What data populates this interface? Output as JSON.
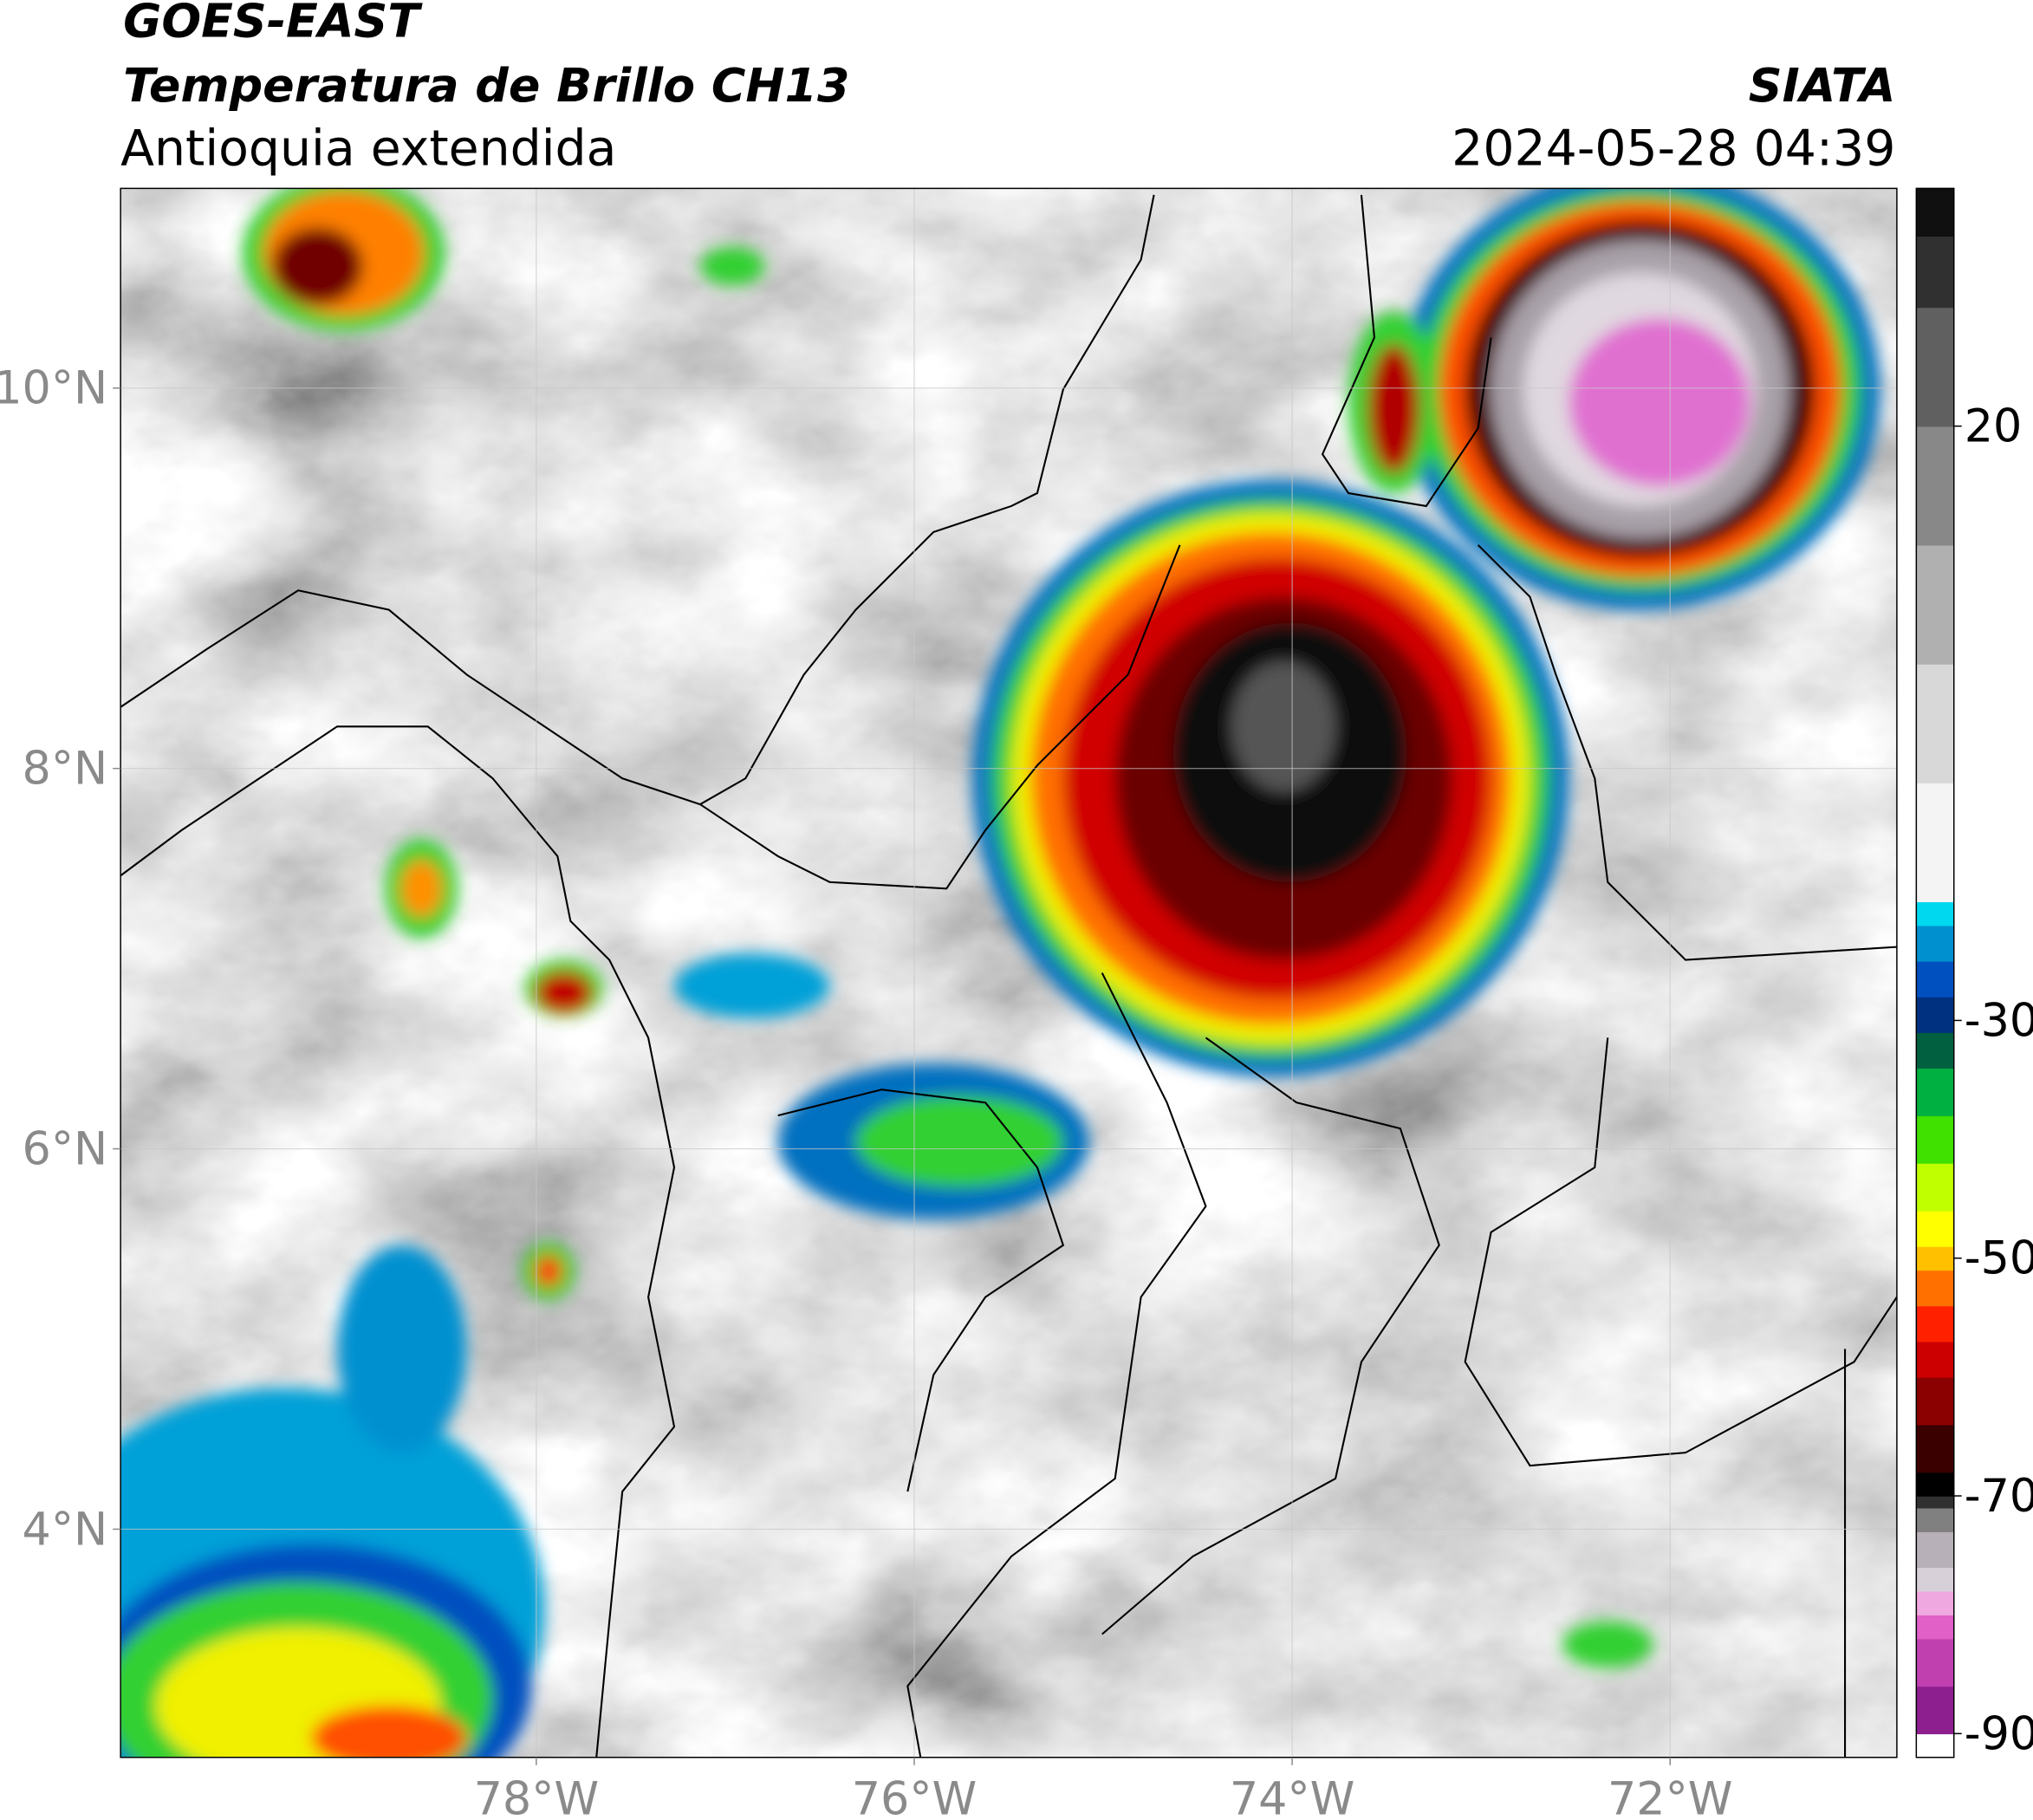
{
  "chart_data": {
    "type": "map",
    "title": "GOES-EAST",
    "subtitle": "Temperatura de Brillo CH13",
    "region": "Antioquia extendida",
    "source": "SIATA",
    "datetime": "2024-05-28 04:39",
    "xlim": [
      -80.2,
      -70.8
    ],
    "ylim": [
      2.8,
      11.05
    ],
    "xticks": [
      {
        "value": -78,
        "label": "78°W"
      },
      {
        "value": -76,
        "label": "76°W"
      },
      {
        "value": -74,
        "label": "74°W"
      },
      {
        "value": -72,
        "label": "72°W"
      }
    ],
    "yticks": [
      {
        "value": 10,
        "label": "10°N"
      },
      {
        "value": 8,
        "label": "8°N"
      },
      {
        "value": 6,
        "label": "6°N"
      },
      {
        "value": 4,
        "label": "4°N"
      }
    ],
    "grid": true,
    "colorbar": {
      "lim": [
        -92,
        40
      ],
      "ticks": [
        20,
        -30,
        -50,
        -70,
        -90
      ],
      "levels": [
        -92,
        -90,
        -86,
        -82,
        -80,
        -78,
        -76,
        -73,
        -71,
        -70,
        -68,
        -64,
        -60,
        -57,
        -54,
        -51,
        -49,
        -46,
        -42,
        -38,
        -34,
        -31,
        -28,
        -25,
        -22,
        -20,
        -10,
        0,
        10,
        20,
        30,
        36
      ],
      "colors": [
        "#ffffff",
        "#8e1f8e",
        "#c040b0",
        "#e060c8",
        "#f0a8e0",
        "#d8d0d8",
        "#b8b0b8",
        "#808080",
        "#303030",
        "#000000",
        "#3a0000",
        "#8b0000",
        "#cc0000",
        "#ff2000",
        "#ff7000",
        "#ffc000",
        "#ffff00",
        "#c0ff00",
        "#40e000",
        "#00b040",
        "#006040",
        "#003080",
        "#0050c0",
        "#0090d0",
        "#00d8f0",
        "#f4f4f4",
        "#d8d8d8",
        "#b0b0b0",
        "#888888",
        "#606060",
        "#303030",
        "#101010"
      ]
    }
  }
}
